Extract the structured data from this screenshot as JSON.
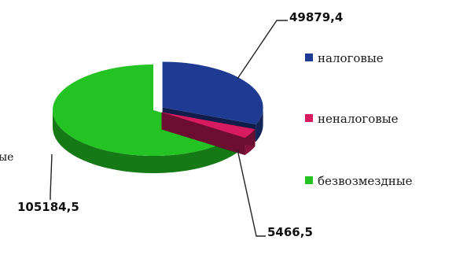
{
  "chart_data": {
    "type": "pie",
    "style": "3d-exploded",
    "slices": [
      {
        "label": "налоговые",
        "value": 49879.4,
        "value_text": "49879,4",
        "color": "#1f3a93"
      },
      {
        "label": "неналоговые",
        "value": 5466.5,
        "value_text": "5466,5",
        "color": "#d81b60"
      },
      {
        "label": "безвозмездные",
        "value": 105184.5,
        "value_text": "105184,5",
        "color": "#22c322"
      }
    ],
    "legend_position": "right",
    "cut_off_text": "ые"
  },
  "legend": {
    "items": [
      {
        "text": "налоговые",
        "color": "#1f3a93"
      },
      {
        "text": "неналоговые",
        "color": "#d81b60"
      },
      {
        "text": "безвозмездные",
        "color": "#22c322"
      }
    ]
  }
}
